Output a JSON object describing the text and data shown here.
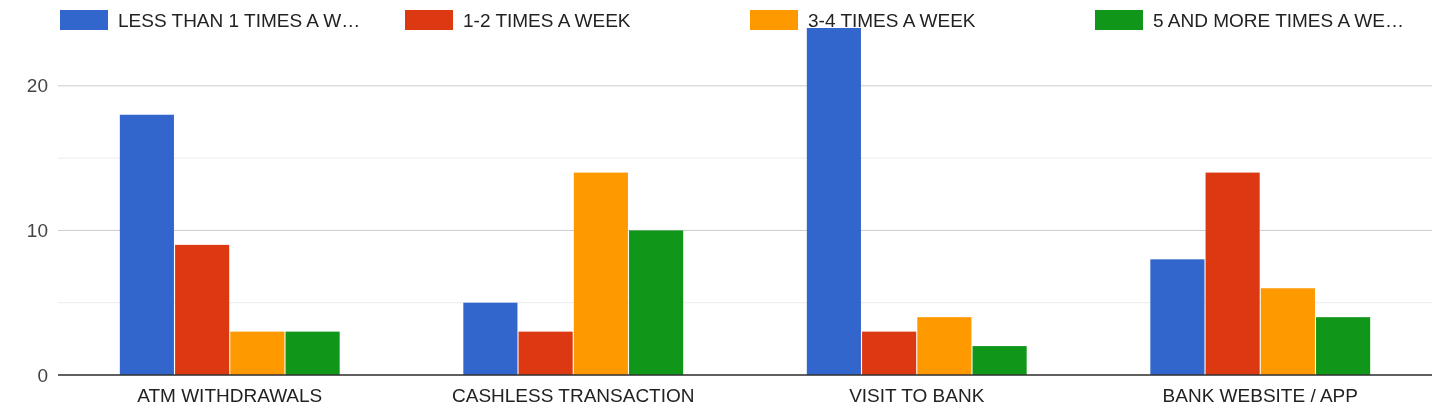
{
  "chart_data": {
    "type": "bar",
    "categories": [
      "ATM WITHDRAWALS",
      "CASHLESS TRANSACTION",
      "VISIT TO BANK",
      "BANK WEBSITE / APP"
    ],
    "series": [
      {
        "name": "LESS THAN 1 TIMES A W…",
        "color": "#3366cc",
        "values": [
          18,
          5,
          24,
          8
        ]
      },
      {
        "name": "1-2 TIMES A WEEK",
        "color": "#dc3912",
        "values": [
          9,
          3,
          3,
          14
        ]
      },
      {
        "name": "3-4 TIMES A WEEK",
        "color": "#ff9900",
        "values": [
          3,
          14,
          4,
          6
        ]
      },
      {
        "name": "5 AND MORE TIMES A WE…",
        "color": "#109618",
        "values": [
          3,
          10,
          2,
          4
        ]
      }
    ],
    "ylim": [
      0,
      24
    ],
    "yticks": [
      0,
      {
        "value": 5,
        "label": null
      },
      10,
      {
        "value": 15,
        "label": null
      },
      20
    ],
    "grid": true,
    "legend": "top"
  }
}
